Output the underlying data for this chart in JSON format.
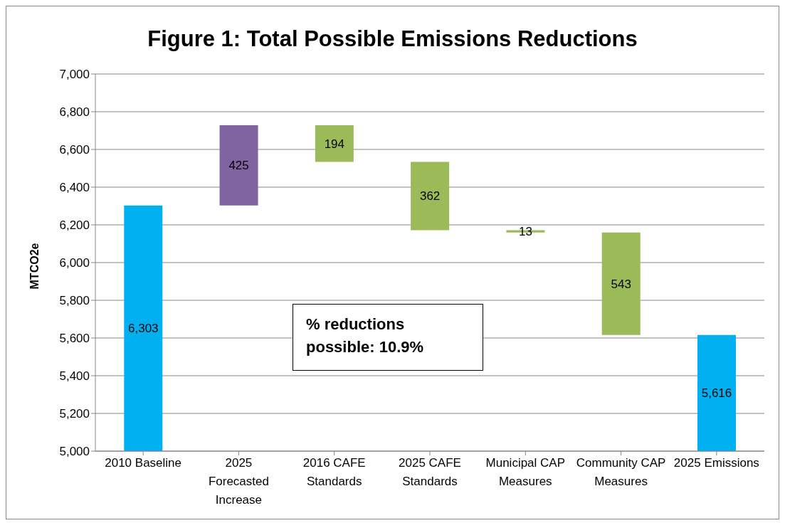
{
  "chart_data": {
    "type": "bar",
    "title": "Figure 1: Total Possible Emissions Reductions",
    "ylabel": "MTCO2e",
    "categories": [
      "2010 Baseline",
      "2025 Forecasted Increase",
      "2016 CAFE Standards",
      "2025 CAFE Standards",
      "Municipal CAP Measures",
      "Community CAP Measures",
      "2025 Emissions"
    ],
    "values": [
      6303,
      425,
      -194,
      -362,
      -13,
      -543,
      5616
    ],
    "base": [
      null,
      6303,
      6728,
      6534,
      6172,
      6159,
      null
    ],
    "colors": [
      "#00b0f0",
      "#8064a2",
      "#9bbb59",
      "#9bbb59",
      "#9bbb59",
      "#9bbb59",
      "#00b0f0"
    ],
    "value_labels": [
      "6,303",
      "425",
      "194",
      "362",
      "13",
      "543",
      "5,616"
    ],
    "ylim": [
      5000,
      7000
    ],
    "yticks": [
      {
        "value": 5000,
        "label": "5,000"
      },
      {
        "value": 5200,
        "label": "5,200"
      },
      {
        "value": 5400,
        "label": "5,400"
      },
      {
        "value": 5600,
        "label": "5,600"
      },
      {
        "value": 5800,
        "label": "5,800"
      },
      {
        "value": 6000,
        "label": "6,000"
      },
      {
        "value": 6200,
        "label": "6,200"
      },
      {
        "value": 6400,
        "label": "6,400"
      },
      {
        "value": 6600,
        "label": "6,600"
      },
      {
        "value": 6800,
        "label": "6,800"
      },
      {
        "value": 7000,
        "label": "7,000"
      }
    ],
    "grid": "y",
    "legend": false,
    "annotations": [
      "% reductions possible: 10.9%"
    ]
  }
}
